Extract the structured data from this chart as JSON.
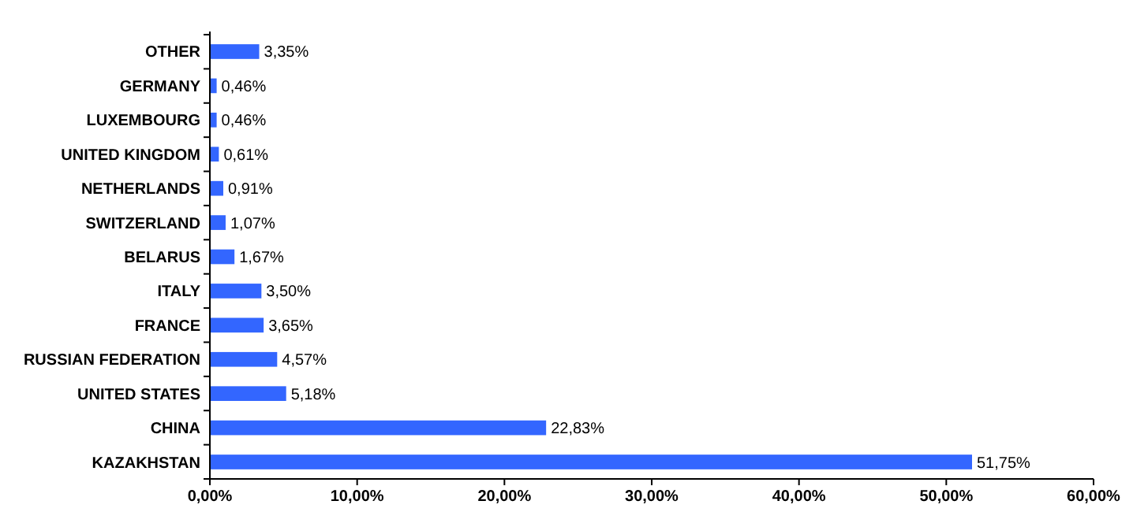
{
  "chart_data": {
    "type": "bar",
    "orientation": "horizontal",
    "categories": [
      "OTHER",
      "GERMANY",
      "LUXEMBOURG",
      "UNITED KINGDOM",
      "NETHERLANDS",
      "SWITZERLAND",
      "BELARUS",
      "ITALY",
      "FRANCE",
      "RUSSIAN FEDERATION",
      "UNITED STATES",
      "CHINA",
      "KAZAKHSTAN"
    ],
    "values": [
      3.35,
      0.46,
      0.46,
      0.61,
      0.91,
      1.07,
      1.67,
      3.5,
      3.65,
      4.57,
      5.18,
      22.83,
      51.75
    ],
    "value_labels": [
      "3,35%",
      "0,46%",
      "0,46%",
      "0,61%",
      "0,91%",
      "1,07%",
      "1,67%",
      "3,50%",
      "3,65%",
      "4,57%",
      "5,18%",
      "22,83%",
      "51,75%"
    ],
    "color": "#3366ff",
    "xlim": [
      0,
      60
    ],
    "grid": false,
    "xticks": [
      {
        "value": 0,
        "label": "0,00%"
      },
      {
        "value": 10,
        "label": "10,00%"
      },
      {
        "value": 20,
        "label": "20,00%"
      },
      {
        "value": 30,
        "label": "30,00%"
      },
      {
        "value": 40,
        "label": "40,00%"
      },
      {
        "value": 50,
        "label": "50,00%"
      },
      {
        "value": 60,
        "label": "60,00%"
      }
    ],
    "legend": false
  }
}
